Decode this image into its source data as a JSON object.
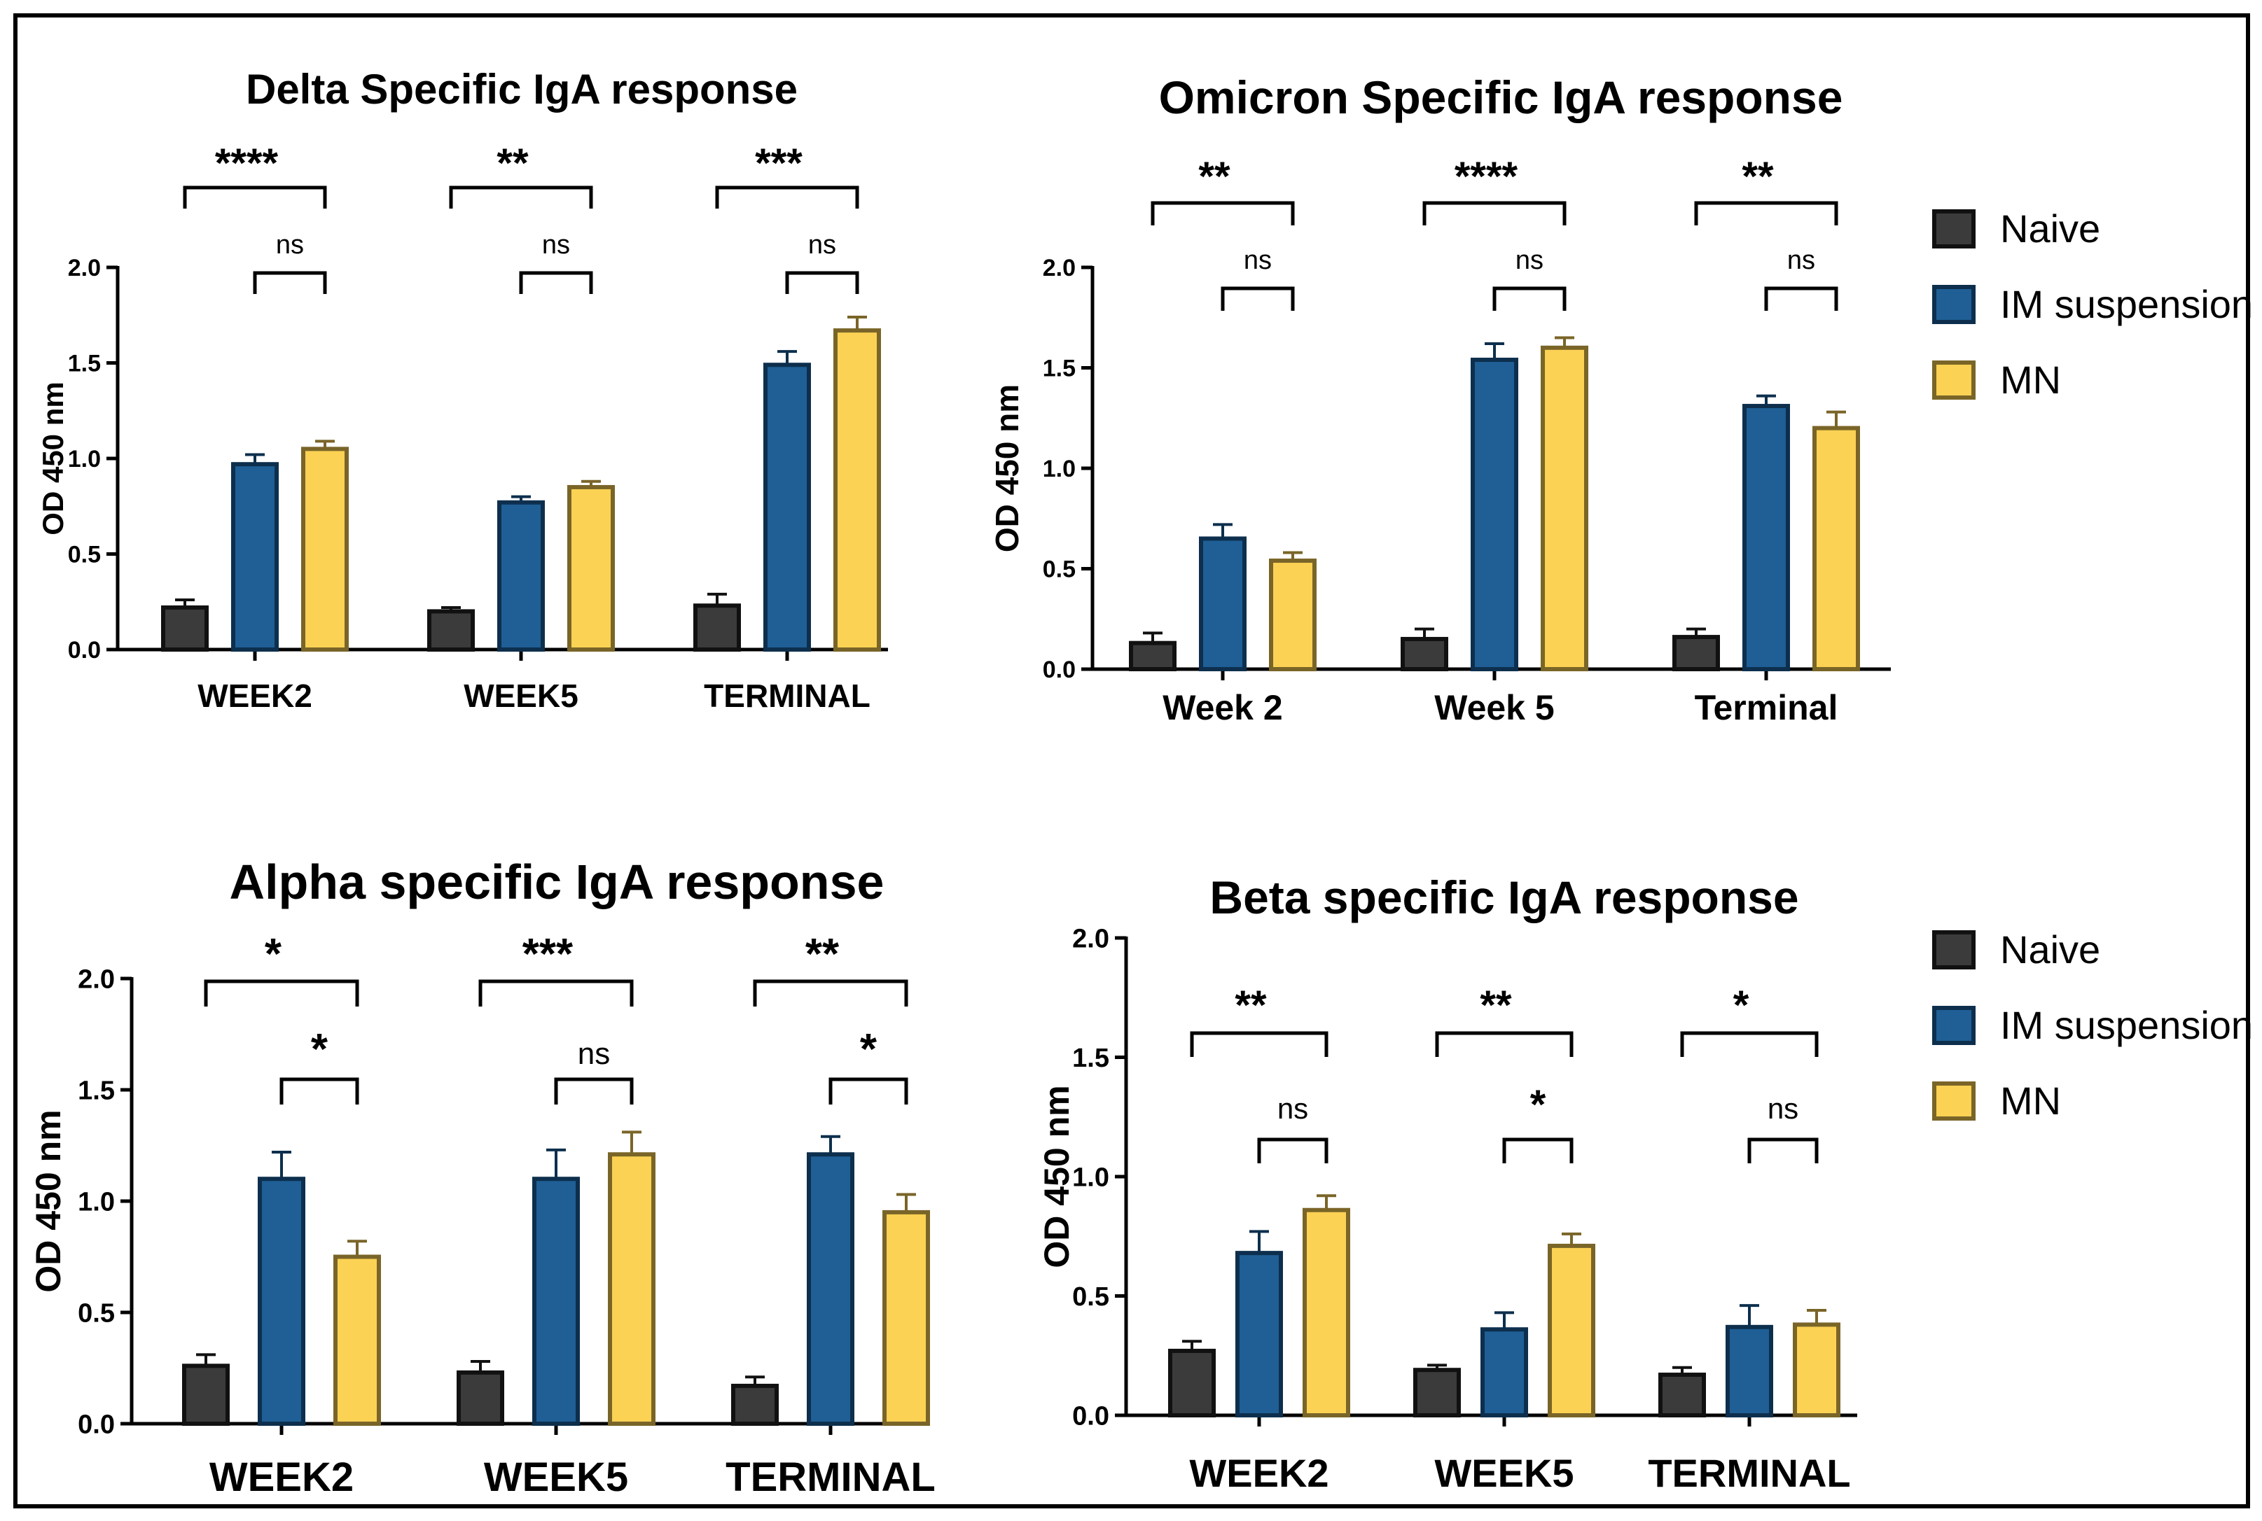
{
  "colors": {
    "naive": "#3b3b3b",
    "im": "#1f5f95",
    "mn": "#fbd254",
    "naive_edge": "#111111",
    "im_edge": "#0d2f4d",
    "mn_edge": "#7a6528"
  },
  "legend": [
    {
      "key": "naive",
      "label": "Naive"
    },
    {
      "key": "im",
      "label": "IM suspension"
    },
    {
      "key": "mn",
      "label": "MN"
    }
  ],
  "chart_data": [
    {
      "type": "bar",
      "title": "Delta Specific IgA response",
      "ylabel": "OD  450 nm",
      "ylim": [
        0,
        2.0
      ],
      "yticks": [
        "0.0",
        "0.5",
        "1.0",
        "1.5",
        "2.0"
      ],
      "categories": [
        "WEEK2",
        "WEEK5",
        "TERMINAL"
      ],
      "series": [
        {
          "name": "Naive",
          "values": [
            0.22,
            0.2,
            0.23
          ],
          "errors": [
            0.04,
            0.02,
            0.06
          ]
        },
        {
          "name": "IM suspension",
          "values": [
            0.97,
            0.77,
            1.49
          ],
          "errors": [
            0.05,
            0.03,
            0.07
          ]
        },
        {
          "name": "MN",
          "values": [
            1.05,
            0.85,
            1.67
          ],
          "errors": [
            0.04,
            0.03,
            0.07
          ]
        }
      ],
      "significance": [
        {
          "upper": "****",
          "lower": "ns"
        },
        {
          "upper": "**",
          "lower": "ns"
        },
        {
          "upper": "***",
          "lower": "ns"
        }
      ]
    },
    {
      "type": "bar",
      "title": "Omicron Specific IgA response",
      "ylabel": "OD  450 nm",
      "ylim": [
        0,
        2.0
      ],
      "yticks": [
        "0.0",
        "0.5",
        "1.0",
        "1.5",
        "2.0"
      ],
      "categories": [
        "Week 2",
        "Week 5",
        "Terminal"
      ],
      "series": [
        {
          "name": "Naive",
          "values": [
            0.13,
            0.15,
            0.16
          ],
          "errors": [
            0.05,
            0.05,
            0.04
          ]
        },
        {
          "name": "IM suspension",
          "values": [
            0.65,
            1.54,
            1.31
          ],
          "errors": [
            0.07,
            0.08,
            0.05
          ]
        },
        {
          "name": "MN",
          "values": [
            0.54,
            1.6,
            1.2
          ],
          "errors": [
            0.04,
            0.05,
            0.08
          ]
        }
      ],
      "significance": [
        {
          "upper": "**",
          "lower": "ns"
        },
        {
          "upper": "****",
          "lower": "ns"
        },
        {
          "upper": "**",
          "lower": "ns"
        }
      ]
    },
    {
      "type": "bar",
      "title": "Alpha  specific IgA response",
      "ylabel": "OD  450 nm",
      "ylim": [
        0,
        2.0
      ],
      "yticks": [
        "0.0",
        "0.5",
        "1.0",
        "1.5",
        "2.0"
      ],
      "categories": [
        "WEEK2",
        "WEEK5",
        "TERMINAL"
      ],
      "series": [
        {
          "name": "Naive",
          "values": [
            0.26,
            0.23,
            0.17
          ],
          "errors": [
            0.05,
            0.05,
            0.04
          ]
        },
        {
          "name": "IM suspension",
          "values": [
            1.1,
            1.1,
            1.21
          ],
          "errors": [
            0.12,
            0.13,
            0.08
          ]
        },
        {
          "name": "MN",
          "values": [
            0.75,
            1.21,
            0.95
          ],
          "errors": [
            0.07,
            0.1,
            0.08
          ]
        }
      ],
      "significance": [
        {
          "upper": "*",
          "lower": "*"
        },
        {
          "upper": "***",
          "lower": "ns"
        },
        {
          "upper": "**",
          "lower": "*"
        }
      ]
    },
    {
      "type": "bar",
      "title": "Beta specific IgA response",
      "ylabel": "OD  450 nm",
      "ylim": [
        0,
        2.0
      ],
      "yticks": [
        "0.0",
        "0.5",
        "1.0",
        "1.5",
        "2.0"
      ],
      "categories": [
        "WEEK2",
        "WEEK5",
        "TERMINAL"
      ],
      "series": [
        {
          "name": "Naive",
          "values": [
            0.27,
            0.19,
            0.17
          ],
          "errors": [
            0.04,
            0.02,
            0.03
          ]
        },
        {
          "name": "IM suspension",
          "values": [
            0.68,
            0.36,
            0.37
          ],
          "errors": [
            0.09,
            0.07,
            0.09
          ]
        },
        {
          "name": "MN",
          "values": [
            0.86,
            0.71,
            0.38
          ],
          "errors": [
            0.06,
            0.05,
            0.06
          ]
        }
      ],
      "significance": [
        {
          "upper": "**",
          "lower": "ns"
        },
        {
          "upper": "**",
          "lower": "*"
        },
        {
          "upper": "*",
          "lower": "ns"
        }
      ]
    }
  ]
}
